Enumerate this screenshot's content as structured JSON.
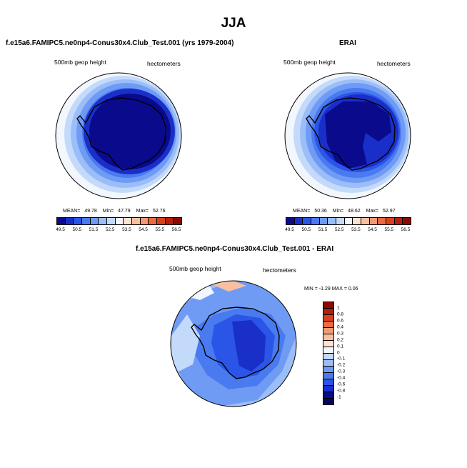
{
  "title": "JJA",
  "panels": {
    "model": {
      "title": "f.e15a6.FAMIPC5.ne0np4-Conus30x4.Club_Test.001 (yrs 1979-2004)",
      "left_label": "500mb geop height",
      "right_label": "hectometers",
      "mean_label": "MEAN=",
      "mean": "49.78",
      "min_label": "Min=",
      "min": "47.79",
      "max_label": "Max=",
      "max": "52.76"
    },
    "obs": {
      "title": "ERAI",
      "left_label": "500mb geop height",
      "right_label": "hectometers",
      "mean_label": "MEAN=",
      "mean": "50.36",
      "min_label": "Min=",
      "min": "48.62",
      "max_label": "Max=",
      "max": "52.97"
    },
    "diff": {
      "title": "f.e15a6.FAMIPC5.ne0np4-Conus30x4.Club_Test.001 - ERAI",
      "left_label": "500mb geop height",
      "right_label": "hectometers",
      "min_label": "MIN =",
      "min": "-1.29",
      "max_label": "MAX =",
      "max": "0.06"
    }
  },
  "colorbar_abs": {
    "ticks": [
      "49.5",
      "50.5",
      "51.5",
      "52.5",
      "53.5",
      "54.5",
      "55.5",
      "56.5"
    ],
    "colors": [
      "#0a0a8c",
      "#1a2fc8",
      "#2a55e6",
      "#4a7af0",
      "#6f9bf5",
      "#9bbdf8",
      "#c4dafb",
      "#f2f6fd",
      "#fde3d0",
      "#f8c0a0",
      "#f39a72",
      "#ea6a42",
      "#d9401e",
      "#b41e0c",
      "#8a0a04"
    ]
  },
  "colorbar_diff": {
    "ticks": [
      "1",
      "0.8",
      "0.6",
      "0.4",
      "0.3",
      "0.2",
      "0.1",
      "0",
      "-0.1",
      "-0.2",
      "-0.3",
      "-0.4",
      "-0.6",
      "-0.8",
      "-1"
    ],
    "colors": [
      "#8a0a04",
      "#b41e0c",
      "#d9401e",
      "#ea6a42",
      "#f39a72",
      "#f8c0a0",
      "#fde3d0",
      "#f2f6fd",
      "#c4dafb",
      "#9bbdf8",
      "#6f9bf5",
      "#4a7af0",
      "#2a55e6",
      "#1a2fc8",
      "#0a0a8c",
      "#060660"
    ]
  }
}
